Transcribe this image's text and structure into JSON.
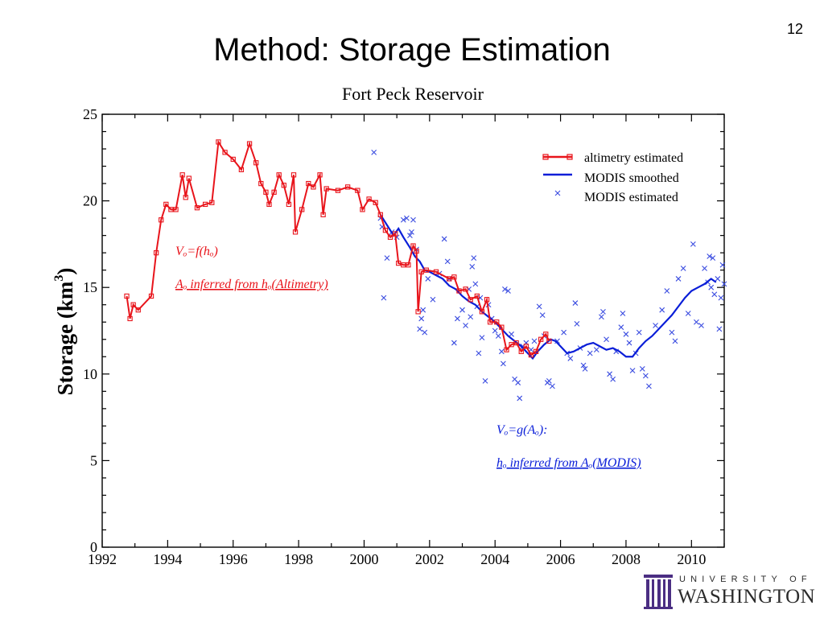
{
  "slide": {
    "number": "12",
    "title": "Method: Storage Estimation"
  },
  "logo": {
    "university": "UNIVERSITY OF",
    "name": "WASHINGTON"
  },
  "colors": {
    "altimetry": "#e8141b",
    "modis": "#0a1ed8",
    "modis_points": "#3a4ce0",
    "axis": "#000000"
  },
  "chart_data": {
    "type": "line",
    "title": "Fort Peck Reservoir",
    "ylabel_text": "Storage (km",
    "ylabel_sup": "3",
    "ylabel_close": ")",
    "xlabel": "",
    "xlim": [
      1992,
      2011
    ],
    "ylim": [
      0,
      25
    ],
    "x_ticks": [
      1992,
      1994,
      1996,
      1998,
      2000,
      2002,
      2004,
      2006,
      2008,
      2010
    ],
    "y_ticks": [
      0,
      5,
      10,
      15,
      20,
      25
    ],
    "grid": false,
    "legend_position": "top-right",
    "series": [
      {
        "name": "altimetry estimated",
        "style": "line-with-square-markers",
        "points": [
          [
            1992.75,
            14.5
          ],
          [
            1992.85,
            13.2
          ],
          [
            1992.95,
            14.0
          ],
          [
            1993.1,
            13.7
          ],
          [
            1993.5,
            14.5
          ],
          [
            1993.65,
            17.0
          ],
          [
            1993.8,
            18.9
          ],
          [
            1993.95,
            19.8
          ],
          [
            1994.1,
            19.5
          ],
          [
            1994.25,
            19.5
          ],
          [
            1994.45,
            21.5
          ],
          [
            1994.55,
            20.2
          ],
          [
            1994.65,
            21.3
          ],
          [
            1994.9,
            19.6
          ],
          [
            1995.15,
            19.8
          ],
          [
            1995.35,
            19.9
          ],
          [
            1995.55,
            23.4
          ],
          [
            1995.75,
            22.8
          ],
          [
            1996.0,
            22.4
          ],
          [
            1996.25,
            21.8
          ],
          [
            1996.5,
            23.3
          ],
          [
            1996.7,
            22.2
          ],
          [
            1996.85,
            21.0
          ],
          [
            1997.0,
            20.5
          ],
          [
            1997.1,
            19.8
          ],
          [
            1997.25,
            20.5
          ],
          [
            1997.4,
            21.5
          ],
          [
            1997.55,
            20.9
          ],
          [
            1997.7,
            19.8
          ],
          [
            1997.85,
            21.5
          ],
          [
            1997.9,
            18.2
          ],
          [
            1998.1,
            19.5
          ],
          [
            1998.3,
            21.0
          ],
          [
            1998.45,
            20.8
          ],
          [
            1998.65,
            21.5
          ],
          [
            1998.75,
            19.2
          ],
          [
            1998.85,
            20.7
          ],
          [
            1999.2,
            20.6
          ],
          [
            1999.5,
            20.8
          ],
          [
            1999.8,
            20.6
          ],
          [
            1999.95,
            19.5
          ],
          [
            2000.15,
            20.1
          ],
          [
            2000.35,
            19.9
          ],
          [
            2000.5,
            19.2
          ],
          [
            2000.65,
            18.3
          ],
          [
            2000.8,
            17.9
          ],
          [
            2000.95,
            18.1
          ],
          [
            2001.05,
            16.4
          ],
          [
            2001.2,
            16.3
          ],
          [
            2001.35,
            16.3
          ],
          [
            2001.5,
            17.4
          ],
          [
            2001.6,
            17.1
          ],
          [
            2001.65,
            13.6
          ],
          [
            2001.75,
            15.9
          ],
          [
            2001.9,
            16.0
          ],
          [
            2002.2,
            15.9
          ],
          [
            2002.6,
            15.5
          ],
          [
            2002.75,
            15.6
          ],
          [
            2002.9,
            14.8
          ],
          [
            2003.1,
            14.9
          ],
          [
            2003.25,
            14.3
          ],
          [
            2003.45,
            14.5
          ],
          [
            2003.6,
            13.6
          ],
          [
            2003.75,
            14.3
          ],
          [
            2003.85,
            13.0
          ],
          [
            2004.05,
            13.0
          ],
          [
            2004.2,
            12.7
          ],
          [
            2004.35,
            11.4
          ],
          [
            2004.5,
            11.7
          ],
          [
            2004.65,
            11.8
          ],
          [
            2004.8,
            11.3
          ],
          [
            2004.95,
            11.6
          ],
          [
            2005.1,
            11.1
          ],
          [
            2005.25,
            11.3
          ],
          [
            2005.4,
            12.0
          ],
          [
            2005.55,
            12.3
          ],
          [
            2005.65,
            11.9
          ]
        ]
      },
      {
        "name": "MODIS smoothed",
        "style": "line",
        "points": [
          [
            2000.5,
            19.2
          ],
          [
            2000.7,
            18.6
          ],
          [
            2000.9,
            18.0
          ],
          [
            2001.05,
            18.4
          ],
          [
            2001.2,
            17.9
          ],
          [
            2001.4,
            17.3
          ],
          [
            2001.55,
            16.8
          ],
          [
            2001.7,
            16.5
          ],
          [
            2001.85,
            16.0
          ],
          [
            2002.0,
            15.9
          ],
          [
            2002.2,
            15.7
          ],
          [
            2002.4,
            15.5
          ],
          [
            2002.6,
            15.1
          ],
          [
            2002.8,
            14.9
          ],
          [
            2003.0,
            14.5
          ],
          [
            2003.2,
            14.2
          ],
          [
            2003.4,
            14.0
          ],
          [
            2003.6,
            13.6
          ],
          [
            2003.8,
            13.3
          ],
          [
            2004.0,
            13.0
          ],
          [
            2004.2,
            12.6
          ],
          [
            2004.4,
            12.2
          ],
          [
            2004.6,
            11.9
          ],
          [
            2004.8,
            11.6
          ],
          [
            2005.0,
            11.2
          ],
          [
            2005.15,
            10.9
          ],
          [
            2005.3,
            11.3
          ],
          [
            2005.5,
            11.7
          ],
          [
            2005.7,
            12.0
          ],
          [
            2005.85,
            11.9
          ],
          [
            2006.0,
            11.6
          ],
          [
            2006.2,
            11.2
          ],
          [
            2006.4,
            11.3
          ],
          [
            2006.6,
            11.5
          ],
          [
            2006.8,
            11.7
          ],
          [
            2007.0,
            11.8
          ],
          [
            2007.2,
            11.6
          ],
          [
            2007.4,
            11.4
          ],
          [
            2007.6,
            11.5
          ],
          [
            2007.8,
            11.3
          ],
          [
            2008.0,
            11.0
          ],
          [
            2008.2,
            11.0
          ],
          [
            2008.4,
            11.5
          ],
          [
            2008.6,
            11.9
          ],
          [
            2008.8,
            12.2
          ],
          [
            2009.0,
            12.6
          ],
          [
            2009.2,
            13.0
          ],
          [
            2009.4,
            13.4
          ],
          [
            2009.6,
            13.9
          ],
          [
            2009.8,
            14.4
          ],
          [
            2010.0,
            14.8
          ],
          [
            2010.2,
            15.0
          ],
          [
            2010.4,
            15.2
          ],
          [
            2010.6,
            15.5
          ],
          [
            2010.75,
            15.3
          ]
        ]
      },
      {
        "name": "MODIS estimated",
        "style": "scatter-x",
        "points": [
          [
            2000.3,
            22.8
          ],
          [
            2000.5,
            19.0
          ],
          [
            2000.55,
            18.5
          ],
          [
            2000.6,
            14.4
          ],
          [
            2000.7,
            16.7
          ],
          [
            2000.85,
            18.2
          ],
          [
            2001.0,
            17.9
          ],
          [
            2001.2,
            18.9
          ],
          [
            2001.3,
            19.0
          ],
          [
            2001.4,
            18.0
          ],
          [
            2001.45,
            18.2
          ],
          [
            2001.5,
            18.9
          ],
          [
            2001.6,
            17.2
          ],
          [
            2001.7,
            12.6
          ],
          [
            2001.75,
            13.2
          ],
          [
            2001.8,
            13.7
          ],
          [
            2001.85,
            12.4
          ],
          [
            2001.95,
            15.5
          ],
          [
            2002.1,
            14.3
          ],
          [
            2002.3,
            15.8
          ],
          [
            2002.45,
            17.8
          ],
          [
            2002.55,
            16.5
          ],
          [
            2002.6,
            15.5
          ],
          [
            2002.75,
            11.8
          ],
          [
            2002.85,
            13.2
          ],
          [
            2003.0,
            13.7
          ],
          [
            2003.1,
            12.8
          ],
          [
            2003.2,
            14.9
          ],
          [
            2003.25,
            13.3
          ],
          [
            2003.3,
            16.2
          ],
          [
            2003.35,
            16.7
          ],
          [
            2003.4,
            15.2
          ],
          [
            2003.45,
            13.9
          ],
          [
            2003.5,
            11.2
          ],
          [
            2003.55,
            14.4
          ],
          [
            2003.6,
            12.1
          ],
          [
            2003.7,
            9.6
          ],
          [
            2003.8,
            14.0
          ],
          [
            2003.9,
            13.2
          ],
          [
            2004.0,
            12.5
          ],
          [
            2004.1,
            12.2
          ],
          [
            2004.2,
            11.3
          ],
          [
            2004.25,
            10.6
          ],
          [
            2004.3,
            14.9
          ],
          [
            2004.4,
            14.8
          ],
          [
            2004.5,
            12.3
          ],
          [
            2004.6,
            9.7
          ],
          [
            2004.7,
            9.5
          ],
          [
            2004.75,
            8.6
          ],
          [
            2004.85,
            11.6
          ],
          [
            2004.95,
            11.8
          ],
          [
            2005.1,
            11.4
          ],
          [
            2005.2,
            11.9
          ],
          [
            2005.35,
            13.9
          ],
          [
            2005.45,
            13.4
          ],
          [
            2005.5,
            12.2
          ],
          [
            2005.6,
            9.5
          ],
          [
            2005.65,
            9.6
          ],
          [
            2005.75,
            9.3
          ],
          [
            2005.9,
            11.9
          ],
          [
            2006.1,
            12.4
          ],
          [
            2006.2,
            11.2
          ],
          [
            2006.3,
            10.9
          ],
          [
            2006.45,
            14.1
          ],
          [
            2006.5,
            12.9
          ],
          [
            2006.6,
            11.5
          ],
          [
            2006.7,
            10.5
          ],
          [
            2006.75,
            10.3
          ],
          [
            2006.9,
            11.2
          ],
          [
            2007.1,
            11.4
          ],
          [
            2007.25,
            13.3
          ],
          [
            2007.3,
            13.6
          ],
          [
            2007.4,
            12.0
          ],
          [
            2007.5,
            10.0
          ],
          [
            2007.6,
            9.7
          ],
          [
            2007.7,
            11.3
          ],
          [
            2007.85,
            12.7
          ],
          [
            2007.9,
            13.5
          ],
          [
            2008.0,
            12.3
          ],
          [
            2008.1,
            11.8
          ],
          [
            2008.2,
            10.2
          ],
          [
            2008.3,
            11.2
          ],
          [
            2008.4,
            12.4
          ],
          [
            2008.5,
            10.3
          ],
          [
            2008.6,
            9.9
          ],
          [
            2008.7,
            9.3
          ],
          [
            2008.9,
            12.8
          ],
          [
            2009.1,
            13.7
          ],
          [
            2009.25,
            14.8
          ],
          [
            2009.4,
            12.4
          ],
          [
            2009.5,
            11.9
          ],
          [
            2009.6,
            15.5
          ],
          [
            2009.75,
            16.1
          ],
          [
            2009.9,
            13.5
          ],
          [
            2010.05,
            17.5
          ],
          [
            2010.15,
            13.0
          ],
          [
            2010.3,
            12.8
          ],
          [
            2010.4,
            16.1
          ],
          [
            2010.5,
            15.3
          ],
          [
            2010.55,
            16.8
          ],
          [
            2010.6,
            15.0
          ],
          [
            2010.65,
            16.7
          ],
          [
            2010.7,
            14.6
          ],
          [
            2010.8,
            15.5
          ],
          [
            2010.85,
            12.6
          ],
          [
            2010.9,
            14.4
          ],
          [
            2010.95,
            16.3
          ],
          [
            2011.0,
            15.2
          ]
        ]
      }
    ],
    "annotations": {
      "altimetry_eq": "Vₒ=f(hₒ)",
      "altimetry_note": "Aₒ inferred from hₒ(Altimetry)",
      "modis_eq": "Vₒ=g(Aₒ):",
      "modis_note": "hₒ inferred from Aₒ(MODIS)"
    }
  }
}
